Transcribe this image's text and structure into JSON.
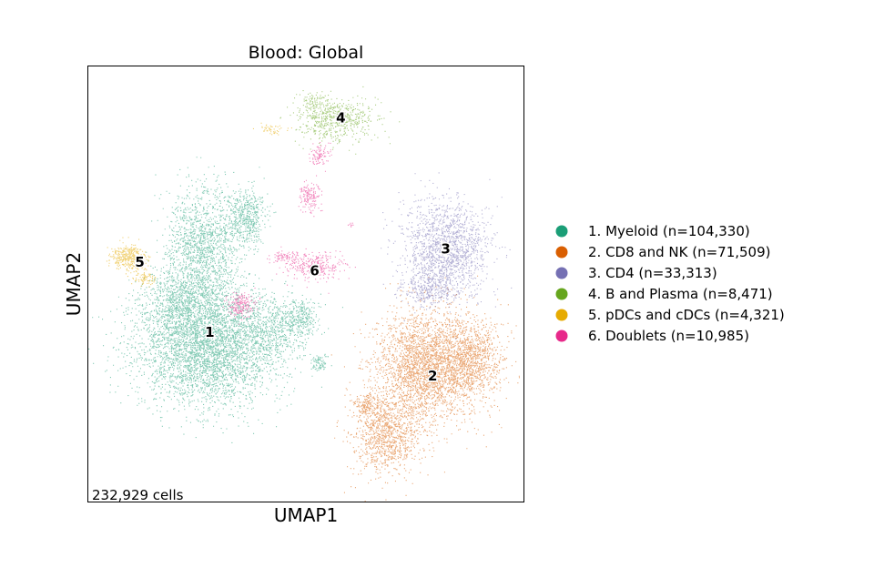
{
  "chart_data": {
    "type": "scatter",
    "title": "Blood: Global",
    "xlabel": "UMAP1",
    "ylabel": "UMAP2",
    "cell_count_label": "232,929 cells",
    "xticks": [],
    "yticks": [],
    "grid": false,
    "legend_placement": "right",
    "xlim": [
      0,
      10
    ],
    "ylim": [
      0,
      10
    ],
    "series": [
      {
        "id": "1",
        "name": "1. Myeloid (n=104,330)",
        "label": "1",
        "color": "#1b9e77",
        "center": [
          2.8,
          3.9
        ]
      },
      {
        "id": "2",
        "name": "2. CD8 and NK (n=71,509)",
        "label": "2",
        "color": "#d95f02",
        "center": [
          7.9,
          2.9
        ]
      },
      {
        "id": "3",
        "name": "3. CD4 (n=33,313)",
        "label": "3",
        "color": "#7570b3",
        "center": [
          8.2,
          5.8
        ]
      },
      {
        "id": "4",
        "name": "4. B and Plasma (n=8,471)",
        "label": "4",
        "color": "#66a61e",
        "center": [
          5.8,
          8.8
        ]
      },
      {
        "id": "5",
        "name": "5. pDCs and cDCs (n=4,321)",
        "label": "5",
        "color": "#e6ab02",
        "center": [
          1.2,
          5.5
        ]
      },
      {
        "id": "6",
        "name": "6. Doublets (n=10,985)",
        "label": "6",
        "color": "#e7298a",
        "center": [
          5.2,
          5.3
        ]
      }
    ]
  }
}
